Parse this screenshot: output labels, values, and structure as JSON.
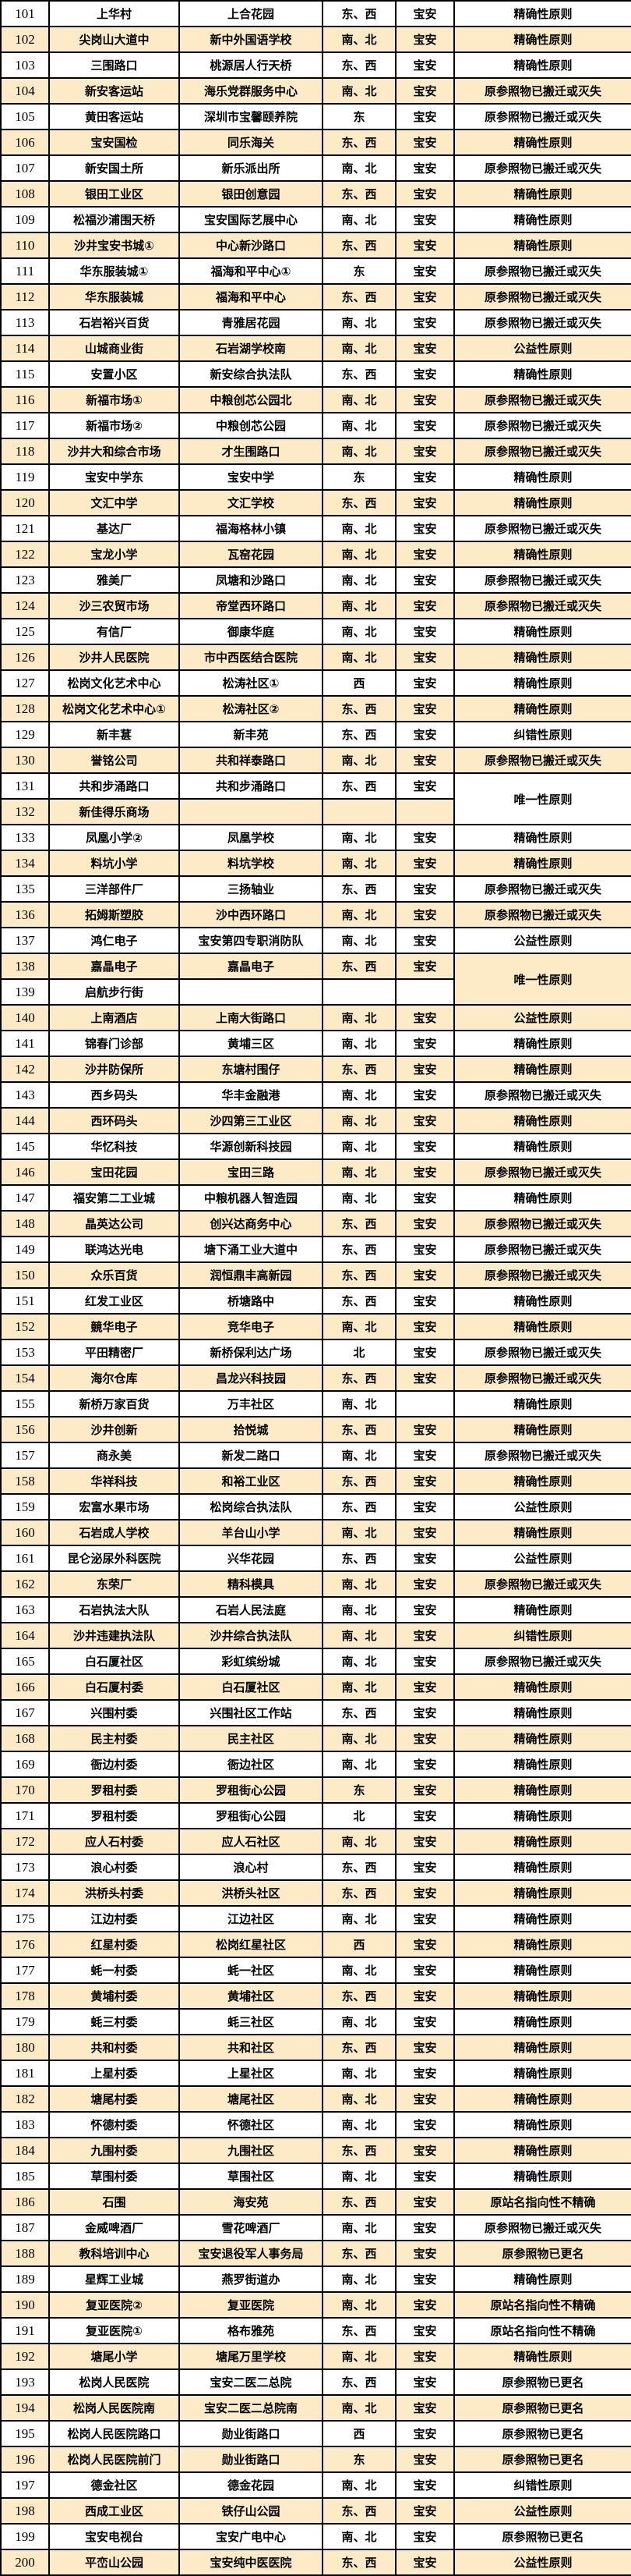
{
  "table": {
    "name": "bus-stop-renaming-table",
    "colors": {
      "row_bg": "#ffffff",
      "row_alt_bg": "#fcebc6",
      "border": "#000000",
      "text": "#000000"
    },
    "rows": [
      {
        "no": "101",
        "old_name": "上华村",
        "new_name": "上合花园",
        "directions": "东、西",
        "district": "宝安",
        "reason": "精确性原则"
      },
      {
        "no": "102",
        "old_name": "尖岗山大道中",
        "new_name": "新中外国语学校",
        "directions": "南、北",
        "district": "宝安",
        "reason": "精确性原则"
      },
      {
        "no": "103",
        "old_name": "三围路口",
        "new_name": "桃源居人行天桥",
        "directions": "东、西",
        "district": "宝安",
        "reason": "精确性原则"
      },
      {
        "no": "104",
        "old_name": "新安客运站",
        "new_name": "海乐党群服务中心",
        "directions": "南、北",
        "district": "宝安",
        "reason": "原参照物已搬迁或灭失"
      },
      {
        "no": "105",
        "old_name": "黄田客运站",
        "new_name": "深圳市宝馨颐养院",
        "directions": "东",
        "district": "宝安",
        "reason": "原参照物已搬迁或灭失"
      },
      {
        "no": "106",
        "old_name": "宝安国检",
        "new_name": "同乐海关",
        "directions": "东、西",
        "district": "宝安",
        "reason": "精确性原则"
      },
      {
        "no": "107",
        "old_name": "新安国土所",
        "new_name": "新乐派出所",
        "directions": "南、北",
        "district": "宝安",
        "reason": "原参照物已搬迁或灭失"
      },
      {
        "no": "108",
        "old_name": "银田工业区",
        "new_name": "银田创意园",
        "directions": "东、西",
        "district": "宝安",
        "reason": "精确性原则"
      },
      {
        "no": "109",
        "old_name": "松福沙浦围天桥",
        "new_name": "宝安国际艺展中心",
        "directions": "南、北",
        "district": "宝安",
        "reason": "精确性原则"
      },
      {
        "no": "110",
        "old_name": "沙井宝安书城①",
        "new_name": "中心新沙路口",
        "directions": "东、西",
        "district": "宝安",
        "reason": "精确性原则"
      },
      {
        "no": "111",
        "old_name": "华东服装城①",
        "new_name": "福海和平中心①",
        "directions": "东",
        "district": "宝安",
        "reason": "原参照物已搬迁或灭失"
      },
      {
        "no": "112",
        "old_name": "华东服装城",
        "new_name": "福海和平中心",
        "directions": "东、西",
        "district": "宝安",
        "reason": "原参照物已搬迁或灭失"
      },
      {
        "no": "113",
        "old_name": "石岩裕兴百货",
        "new_name": "青雅居花园",
        "directions": "南、北",
        "district": "宝安",
        "reason": "原参照物已搬迁或灭失"
      },
      {
        "no": "114",
        "old_name": "山城商业街",
        "new_name": "石岩湖学校南",
        "directions": "南、北",
        "district": "宝安",
        "reason": "公益性原则"
      },
      {
        "no": "115",
        "old_name": "安置小区",
        "new_name": "新安综合执法队",
        "directions": "东、西",
        "district": "宝安",
        "reason": "精确性原则"
      },
      {
        "no": "116",
        "old_name": "新福市场①",
        "new_name": "中粮创芯公园北",
        "directions": "南、北",
        "district": "宝安",
        "reason": "原参照物已搬迁或灭失"
      },
      {
        "no": "117",
        "old_name": "新福市场②",
        "new_name": "中粮创芯公园",
        "directions": "南、北",
        "district": "宝安",
        "reason": "原参照物已搬迁或灭失"
      },
      {
        "no": "118",
        "old_name": "沙井大和综合市场",
        "new_name": "才生围路口",
        "directions": "南、北",
        "district": "宝安",
        "reason": "原参照物已搬迁或灭失"
      },
      {
        "no": "119",
        "old_name": "宝安中学东",
        "new_name": "宝安中学",
        "directions": "东",
        "district": "宝安",
        "reason": "精确性原则"
      },
      {
        "no": "120",
        "old_name": "文汇中学",
        "new_name": "文汇学校",
        "directions": "东、西",
        "district": "宝安",
        "reason": "精确性原则"
      },
      {
        "no": "121",
        "old_name": "基达厂",
        "new_name": "福海格林小镇",
        "directions": "南、北",
        "district": "宝安",
        "reason": "原参照物已搬迁或灭失"
      },
      {
        "no": "122",
        "old_name": "宝龙小学",
        "new_name": "瓦窑花园",
        "directions": "南、北",
        "district": "宝安",
        "reason": "精确性原则"
      },
      {
        "no": "123",
        "old_name": "雅美厂",
        "new_name": "凤塘和沙路口",
        "directions": "南、北",
        "district": "宝安",
        "reason": "原参照物已搬迁或灭失"
      },
      {
        "no": "124",
        "old_name": "沙三农贸市场",
        "new_name": "帝堂西环路口",
        "directions": "南、北",
        "district": "宝安",
        "reason": "原参照物已搬迁或灭失"
      },
      {
        "no": "125",
        "old_name": "有信厂",
        "new_name": "御康华庭",
        "directions": "南、北",
        "district": "宝安",
        "reason": "精确性原则"
      },
      {
        "no": "126",
        "old_name": "沙井人民医院",
        "new_name": "市中西医结合医院",
        "directions": "南、北",
        "district": "宝安",
        "reason": "精确性原则"
      },
      {
        "no": "127",
        "old_name": "松岗文化艺术中心",
        "new_name": "松涛社区①",
        "directions": "西",
        "district": "宝安",
        "reason": "精确性原则"
      },
      {
        "no": "128",
        "old_name": "松岗文化艺术中心①",
        "new_name": "松涛社区②",
        "directions": "东、西",
        "district": "宝安",
        "reason": "精确性原则"
      },
      {
        "no": "129",
        "old_name": "新丰葚",
        "new_name": "新丰苑",
        "directions": "东、西",
        "district": "宝安",
        "reason": "纠错性原则"
      },
      {
        "no": "130",
        "old_name": "誉铭公司",
        "new_name": "共和祥泰路口",
        "directions": "南、北",
        "district": "宝安",
        "reason": "原参照物已搬迁或灭失"
      },
      {
        "no": "131",
        "old_name": "共和步涌路口",
        "new_name": "共和步涌路口",
        "directions": "东、西",
        "district": "宝安",
        "reason": "唯一性原则",
        "reason_rowspan": 2
      },
      {
        "no": "132",
        "old_name": "新佳得乐商场",
        "new_name": "",
        "directions": "",
        "district": "",
        "reason": "",
        "reason_in_previous_row": true
      },
      {
        "no": "133",
        "old_name": "凤凰小学②",
        "new_name": "凤凰学校",
        "directions": "南、北",
        "district": "宝安",
        "reason": "精确性原则"
      },
      {
        "no": "134",
        "old_name": "料坑小学",
        "new_name": "料坑学校",
        "directions": "南、北",
        "district": "宝安",
        "reason": "精确性原则"
      },
      {
        "no": "135",
        "old_name": "三洋部件厂",
        "new_name": "三扬轴业",
        "directions": "东、西",
        "district": "宝安",
        "reason": "原参照物已搬迁或灭失"
      },
      {
        "no": "136",
        "old_name": "拓姆斯塑胶",
        "new_name": "沙中西环路口",
        "directions": "南、北",
        "district": "宝安",
        "reason": "原参照物已搬迁或灭失"
      },
      {
        "no": "137",
        "old_name": "鸿仁电子",
        "new_name": "宝安第四专职消防队",
        "directions": "南、北",
        "district": "宝安",
        "reason": "公益性原则"
      },
      {
        "no": "138",
        "old_name": "嘉晶电子",
        "new_name": "嘉晶电子",
        "directions": "东、西",
        "district": "宝安",
        "reason": "唯一性原则",
        "reason_rowspan": 2
      },
      {
        "no": "139",
        "old_name": "启航步行街",
        "new_name": "",
        "directions": "",
        "district": "",
        "reason": "",
        "reason_in_previous_row": true
      },
      {
        "no": "140",
        "old_name": "上南酒店",
        "new_name": "上南大街路口",
        "directions": "南、北",
        "district": "宝安",
        "reason": "公益性原则"
      },
      {
        "no": "141",
        "old_name": "锦春门诊部",
        "new_name": "黄埔三区",
        "directions": "南、北",
        "district": "宝安",
        "reason": "精确性原则"
      },
      {
        "no": "142",
        "old_name": "沙井防保所",
        "new_name": "东塘村围仔",
        "directions": "东、西",
        "district": "宝安",
        "reason": "精确性原则"
      },
      {
        "no": "143",
        "old_name": "西乡码头",
        "new_name": "华丰金融港",
        "directions": "南、北",
        "district": "宝安",
        "reason": "原参照物已搬迁或灭失"
      },
      {
        "no": "144",
        "old_name": "西环码头",
        "new_name": "沙四第三工业区",
        "directions": "南、北",
        "district": "宝安",
        "reason": "精确性原则"
      },
      {
        "no": "145",
        "old_name": "华忆科技",
        "new_name": "华源创新科技园",
        "directions": "南、北",
        "district": "宝安",
        "reason": "精确性原则"
      },
      {
        "no": "146",
        "old_name": "宝田花园",
        "new_name": "宝田三路",
        "directions": "南、北",
        "district": "宝安",
        "reason": "原参照物已搬迁或灭失"
      },
      {
        "no": "147",
        "old_name": "福安第二工业城",
        "new_name": "中粮机器人智造园",
        "directions": "南、北",
        "district": "宝安",
        "reason": "精确性原则"
      },
      {
        "no": "148",
        "old_name": "晶英达公司",
        "new_name": "创兴达商务中心",
        "directions": "东、西",
        "district": "宝安",
        "reason": "原参照物已搬迁或灭失"
      },
      {
        "no": "149",
        "old_name": "联鸿达光电",
        "new_name": "塘下涌工业大道中",
        "directions": "东、西",
        "district": "宝安",
        "reason": "原参照物已搬迁或灭失"
      },
      {
        "no": "150",
        "old_name": "众乐百货",
        "new_name": "润恒鼎丰高新园",
        "directions": "东、西",
        "district": "宝安",
        "reason": "原参照物已搬迁或灭失"
      },
      {
        "no": "151",
        "old_name": "红发工业区",
        "new_name": "桥塘路中",
        "directions": "东、西",
        "district": "宝安",
        "reason": "精确性原则"
      },
      {
        "no": "152",
        "old_name": "竸华电子",
        "new_name": "竞华电子",
        "directions": "南、北",
        "district": "宝安",
        "reason": "精确性原则"
      },
      {
        "no": "153",
        "old_name": "平田精密厂",
        "new_name": "新桥保利达广场",
        "directions": "北",
        "district": "宝安",
        "reason": "原参照物已搬迁或灭失"
      },
      {
        "no": "154",
        "old_name": "海尔仓库",
        "new_name": "昌龙兴科技园",
        "directions": "东、西",
        "district": "宝安",
        "reason": "原参照物已搬迁或灭失"
      },
      {
        "no": "155",
        "old_name": "新桥万家百货",
        "new_name": "万丰社区",
        "directions": "南、北",
        "district": "",
        "reason": "精确性原则"
      },
      {
        "no": "156",
        "old_name": "沙井创新",
        "new_name": "拾悦城",
        "directions": "东、西",
        "district": "宝安",
        "reason": "精确性原则"
      },
      {
        "no": "157",
        "old_name": "商永美",
        "new_name": "新发二路口",
        "directions": "南、北",
        "district": "宝安",
        "reason": "原参照物已搬迁或灭失"
      },
      {
        "no": "158",
        "old_name": "华祥科技",
        "new_name": "和裕工业区",
        "directions": "东、西",
        "district": "宝安",
        "reason": "精确性原则"
      },
      {
        "no": "159",
        "old_name": "宏富水果市场",
        "new_name": "松岗综合执法队",
        "directions": "东、西",
        "district": "宝安",
        "reason": "公益性原则"
      },
      {
        "no": "160",
        "old_name": "石岩成人学校",
        "new_name": "羊台山小学",
        "directions": "南、北",
        "district": "宝安",
        "reason": "精确性原则"
      },
      {
        "no": "161",
        "old_name": "昆仑泌尿外科医院",
        "new_name": "兴华花园",
        "directions": "东、西",
        "district": "宝安",
        "reason": "公益性原则"
      },
      {
        "no": "162",
        "old_name": "东荣厂",
        "new_name": "精科模具",
        "directions": "南、北",
        "district": "宝安",
        "reason": "原参照物已搬迁或灭失"
      },
      {
        "no": "163",
        "old_name": "石岩执法大队",
        "new_name": "石岩人民法庭",
        "directions": "南、北",
        "district": "宝安",
        "reason": "精确性原则"
      },
      {
        "no": "164",
        "old_name": "沙井违建执法队",
        "new_name": "沙井综合执法队",
        "directions": "南、北",
        "district": "宝安",
        "reason": "纠错性原则"
      },
      {
        "no": "165",
        "old_name": "白石厦社区",
        "new_name": "彩虹缤纷城",
        "directions": "南、北",
        "district": "宝安",
        "reason": "原参照物已搬迁或灭失"
      },
      {
        "no": "166",
        "old_name": "白石厦村委",
        "new_name": "白石厦社区",
        "directions": "南、北",
        "district": "宝安",
        "reason": "精确性原则"
      },
      {
        "no": "167",
        "old_name": "兴围村委",
        "new_name": "兴围社区工作站",
        "directions": "东、西",
        "district": "宝安",
        "reason": "精确性原则"
      },
      {
        "no": "168",
        "old_name": "民主村委",
        "new_name": "民主社区",
        "directions": "南、北",
        "district": "宝安",
        "reason": "精确性原则"
      },
      {
        "no": "169",
        "old_name": "衙边村委",
        "new_name": "衙边社区",
        "directions": "南、北",
        "district": "宝安",
        "reason": "精确性原则"
      },
      {
        "no": "170",
        "old_name": "罗租村委",
        "new_name": "罗租街心公园",
        "directions": "东",
        "district": "宝安",
        "reason": "精确性原则"
      },
      {
        "no": "171",
        "old_name": "罗租村委",
        "new_name": "罗租街心公园",
        "directions": "北",
        "district": "宝安",
        "reason": "精确性原则"
      },
      {
        "no": "172",
        "old_name": "应人石村委",
        "new_name": "应人石社区",
        "directions": "南、北",
        "district": "宝安",
        "reason": "精确性原则"
      },
      {
        "no": "173",
        "old_name": "浪心村委",
        "new_name": "浪心村",
        "directions": "东、西",
        "district": "宝安",
        "reason": "精确性原则"
      },
      {
        "no": "174",
        "old_name": "洪桥头村委",
        "new_name": "洪桥头社区",
        "directions": "东、西",
        "district": "宝安",
        "reason": "精确性原则"
      },
      {
        "no": "175",
        "old_name": "江边村委",
        "new_name": "江边社区",
        "directions": "南、北",
        "district": "宝安",
        "reason": "精确性原则"
      },
      {
        "no": "176",
        "old_name": "红星村委",
        "new_name": "松岗红星社区",
        "directions": "西",
        "district": "宝安",
        "reason": "精确性原则"
      },
      {
        "no": "177",
        "old_name": "蚝一村委",
        "new_name": "蚝一社区",
        "directions": "南、北",
        "district": "宝安",
        "reason": "精确性原则"
      },
      {
        "no": "178",
        "old_name": "黄埔村委",
        "new_name": "黄埔社区",
        "directions": "东、西",
        "district": "宝安",
        "reason": "精确性原则"
      },
      {
        "no": "179",
        "old_name": "蚝三村委",
        "new_name": "蚝三社区",
        "directions": "南、北",
        "district": "宝安",
        "reason": "精确性原则"
      },
      {
        "no": "180",
        "old_name": "共和村委",
        "new_name": "共和社区",
        "directions": "东、西",
        "district": "宝安",
        "reason": "精确性原则"
      },
      {
        "no": "181",
        "old_name": "上星村委",
        "new_name": "上星社区",
        "directions": "南、北",
        "district": "宝安",
        "reason": "精确性原则"
      },
      {
        "no": "182",
        "old_name": "塘尾村委",
        "new_name": "塘尾社区",
        "directions": "南、北",
        "district": "宝安",
        "reason": "精确性原则"
      },
      {
        "no": "183",
        "old_name": "怀德村委",
        "new_name": "怀德社区",
        "directions": "南、北",
        "district": "宝安",
        "reason": "精确性原则"
      },
      {
        "no": "184",
        "old_name": "九围村委",
        "new_name": "九围社区",
        "directions": "东、西",
        "district": "宝安",
        "reason": "精确性原则"
      },
      {
        "no": "185",
        "old_name": "草围村委",
        "new_name": "草围社区",
        "directions": "南、北",
        "district": "宝安",
        "reason": "精确性原则"
      },
      {
        "no": "186",
        "old_name": "石围",
        "new_name": "海安苑",
        "directions": "东、西",
        "district": "宝安",
        "reason": "原站名指向性不精确"
      },
      {
        "no": "187",
        "old_name": "金威啤酒厂",
        "new_name": "雪花啤酒厂",
        "directions": "南、北",
        "district": "宝安",
        "reason": "原参照物已搬迁或灭失"
      },
      {
        "no": "188",
        "old_name": "教科培训中心",
        "new_name": "宝安退役军人事务局",
        "directions": "东、西",
        "district": "宝安",
        "reason": "原参照物已更名"
      },
      {
        "no": "189",
        "old_name": "星辉工业城",
        "new_name": "燕罗街道办",
        "directions": "南、北",
        "district": "宝安",
        "reason": "精确性原则"
      },
      {
        "no": "190",
        "old_name": "复亚医院②",
        "new_name": "复亚医院",
        "directions": "南、北",
        "district": "宝安",
        "reason": "原站名指向性不精确"
      },
      {
        "no": "191",
        "old_name": "复亚医院①",
        "new_name": "格布雅苑",
        "directions": "东、西",
        "district": "宝安",
        "reason": "原站名指向性不精确"
      },
      {
        "no": "192",
        "old_name": "塘尾小学",
        "new_name": "塘尾万里学校",
        "directions": "南、北",
        "district": "宝安",
        "reason": "精确性原则"
      },
      {
        "no": "193",
        "old_name": "松岗人民医院",
        "new_name": "宝安二医二总院",
        "directions": "东、西",
        "district": "宝安",
        "reason": "原参照物已更名"
      },
      {
        "no": "194",
        "old_name": "松岗人民医院南",
        "new_name": "宝安二医二总院南",
        "directions": "南、北",
        "district": "宝安",
        "reason": "原参照物已更名"
      },
      {
        "no": "195",
        "old_name": "松岗人民医院路口",
        "new_name": "勋业街路口",
        "directions": "西",
        "district": "宝安",
        "reason": "原参照物已更名"
      },
      {
        "no": "196",
        "old_name": "松岗人民医院前门",
        "new_name": "勋业街路口",
        "directions": "东",
        "district": "宝安",
        "reason": "原参照物已更名"
      },
      {
        "no": "197",
        "old_name": "德金社区",
        "new_name": "德金花园",
        "directions": "南、北",
        "district": "宝安",
        "reason": "纠错性原则"
      },
      {
        "no": "198",
        "old_name": "西成工业区",
        "new_name": "铁仔山公园",
        "directions": "东、西",
        "district": "宝安",
        "reason": "公益性原则"
      },
      {
        "no": "199",
        "old_name": "宝安电视台",
        "new_name": "宝安广电中心",
        "directions": "南、北",
        "district": "宝安",
        "reason": "原参照物已更名"
      },
      {
        "no": "200",
        "old_name": "平峦山公园",
        "new_name": "宝安纯中医医院",
        "directions": "东、西",
        "district": "宝安",
        "reason": "公益性原则"
      }
    ]
  }
}
